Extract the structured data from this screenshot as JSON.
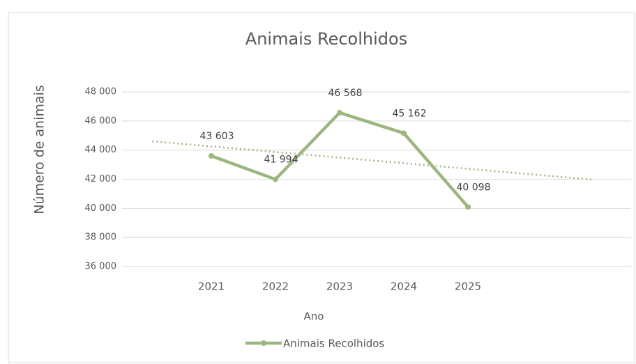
{
  "chart_data": {
    "type": "line",
    "title": "Animais Recolhidos",
    "x_label": "Ano",
    "y_label": "Número de animais",
    "categories": [
      "2021",
      "2022",
      "2023",
      "2024",
      "2025"
    ],
    "series": [
      {
        "name": "Animais Recolhidos",
        "color": "#9cb67f",
        "values": [
          43603,
          41994,
          46568,
          45162,
          40098
        ],
        "value_labels": [
          "43 603",
          "41 994",
          "46 568",
          "45 162",
          "40 098"
        ]
      }
    ],
    "ylim": [
      36000,
      48000
    ],
    "yticks": [
      {
        "value": 36000,
        "label": "36 000"
      },
      {
        "value": 38000,
        "label": "38 000"
      },
      {
        "value": 40000,
        "label": "40 000"
      },
      {
        "value": 42000,
        "label": "42 000"
      },
      {
        "value": 44000,
        "label": "44 000"
      },
      {
        "value": 46000,
        "label": "46 000"
      },
      {
        "value": 48000,
        "label": "48 000"
      }
    ],
    "grid": true,
    "trendline": true,
    "legend": "bottom"
  }
}
